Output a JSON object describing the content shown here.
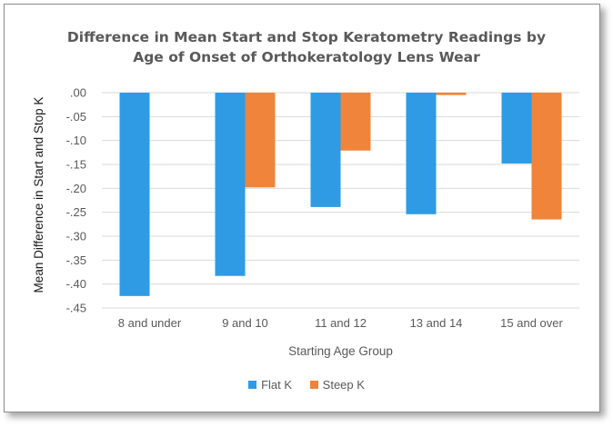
{
  "chart_data": {
    "type": "bar",
    "title": [
      "Difference in Mean Start and Stop Keratometry Readings by",
      "Age of Onset of Orthokeratology Lens Wear"
    ],
    "xlabel": "Starting Age Group",
    "ylabel": "Mean Difference in Start and Stop K",
    "categories": [
      "8 and under",
      "9 and 10",
      "11 and 12",
      "13 and 14",
      "15 and over"
    ],
    "yticks": [
      ".00",
      "-.05",
      "-.10",
      "-.15",
      "-.20",
      "-.25",
      "-.30",
      "-.35",
      "-.40",
      "-.45"
    ],
    "ylim": [
      -0.45,
      0
    ],
    "grid": true,
    "legend_position": "bottom",
    "series": [
      {
        "name": "Flat K",
        "color": "#2e9be4",
        "values": [
          -0.425,
          -0.383,
          -0.239,
          -0.254,
          -0.148
        ]
      },
      {
        "name": "Steep K",
        "color": "#f0843a",
        "values": [
          null,
          -0.198,
          -0.121,
          -0.005,
          -0.265
        ]
      }
    ]
  }
}
